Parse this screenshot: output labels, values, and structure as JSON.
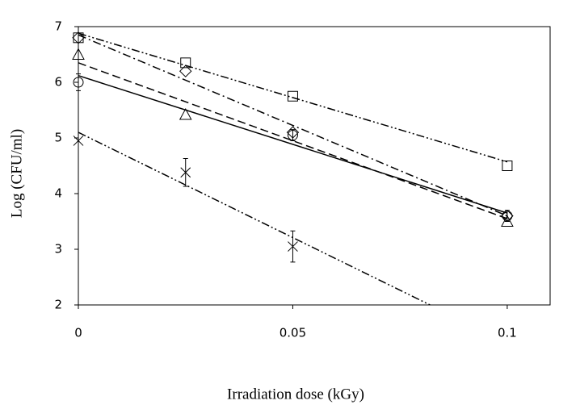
{
  "chart_data": {
    "type": "scatter",
    "x_label": "Irradiation dose (kGy)",
    "y_label": "Log (CFU/ml)",
    "xlim": [
      0,
      0.11
    ],
    "ylim": [
      2,
      7
    ],
    "xticks": [
      0,
      0.05,
      0.1
    ],
    "yticks": [
      2,
      3,
      4,
      5,
      6,
      7
    ],
    "color": "#000000",
    "series": [
      {
        "marker": "square",
        "dash": "dash-dot-dot",
        "x": [
          0,
          0.025,
          0.05,
          0.1
        ],
        "values": [
          6.8,
          6.35,
          5.75,
          4.5
        ],
        "errors": [
          null,
          null,
          null,
          null
        ],
        "trend": {
          "x": [
            0,
            0.1
          ],
          "y": [
            6.88,
            4.57
          ]
        }
      },
      {
        "marker": "diamond",
        "dash": "dash-dot",
        "x": [
          0,
          0.025,
          0.05,
          0.1
        ],
        "values": [
          6.8,
          6.2,
          5.1,
          3.6
        ],
        "errors": [
          null,
          null,
          null,
          null
        ],
        "trend": {
          "x": [
            0,
            0.1
          ],
          "y": [
            6.85,
            3.6
          ]
        }
      },
      {
        "marker": "triangle",
        "dash": "dash",
        "x": [
          0,
          0.025,
          0.05,
          0.1
        ],
        "values": [
          6.5,
          5.42,
          null,
          3.5
        ],
        "errors": [
          null,
          null,
          null,
          null
        ],
        "trend": {
          "x": [
            0,
            0.1
          ],
          "y": [
            6.35,
            3.55
          ]
        }
      },
      {
        "marker": "circle",
        "dash": "solid",
        "x": [
          0,
          0.025,
          0.05,
          0.1
        ],
        "values": [
          6.0,
          null,
          5.05,
          3.6
        ],
        "errors": [
          0.15,
          null,
          0.1,
          0.1
        ],
        "trend": {
          "x": [
            0,
            0.1
          ],
          "y": [
            6.12,
            3.65
          ]
        }
      },
      {
        "marker": "cross",
        "dash": "dash-dot-dot",
        "x": [
          0,
          0.025,
          0.05
        ],
        "values": [
          4.95,
          4.38,
          3.05
        ],
        "errors": [
          null,
          0.25,
          0.28
        ],
        "trend": {
          "x": [
            0,
            0.082
          ],
          "y": [
            5.1,
            2.0
          ]
        }
      }
    ]
  }
}
